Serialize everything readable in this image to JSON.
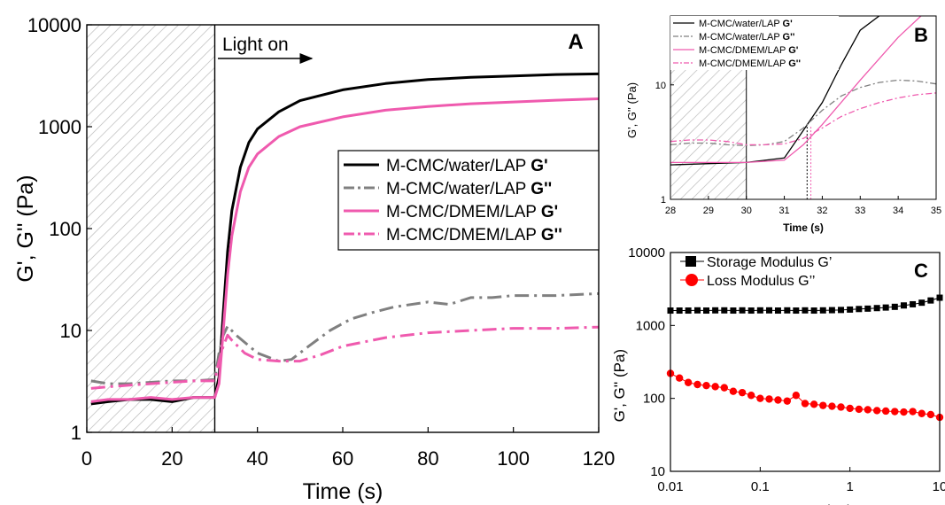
{
  "colors": {
    "black": "#000000",
    "gray": "#808080",
    "pink": "#ef5aae",
    "red": "#ff0000",
    "hatch": "#b5b5b5"
  },
  "chart_data": [
    {
      "panel": "A",
      "type": "line",
      "xlabel": "Time (s)",
      "ylabel": "G', G'' (Pa)",
      "xlim": [
        0,
        120
      ],
      "ylim": [
        1,
        10000
      ],
      "yscale": "log",
      "xticks": [
        "0",
        "20",
        "40",
        "60",
        "80",
        "100",
        "120"
      ],
      "yticks": [
        "1",
        "10",
        "100",
        "1000",
        "10000"
      ],
      "annotation": "Light on",
      "hatched_region": [
        0,
        30
      ],
      "legend_position": "center-right",
      "series": [
        {
          "name": "M-CMC/water/LAP",
          "modulus": "G'",
          "color": "#000000",
          "style": "solid",
          "x": [
            1,
            5,
            10,
            15,
            20,
            25,
            30,
            31,
            32,
            33,
            34,
            36,
            38,
            40,
            45,
            50,
            60,
            70,
            80,
            90,
            100,
            110,
            120
          ],
          "y": [
            1.9,
            2.0,
            2.1,
            2.1,
            2.0,
            2.2,
            2.2,
            3.5,
            15,
            60,
            150,
            400,
            700,
            950,
            1400,
            1800,
            2300,
            2650,
            2900,
            3050,
            3150,
            3250,
            3300
          ]
        },
        {
          "name": "M-CMC/water/LAP",
          "modulus": "G''",
          "color": "#808080",
          "style": "dashdot",
          "x": [
            1,
            5,
            10,
            15,
            20,
            25,
            30,
            31,
            32,
            33,
            35,
            40,
            45,
            48,
            52,
            57,
            62,
            67,
            72,
            80,
            85,
            90,
            95,
            100,
            110,
            120
          ],
          "y": [
            3.2,
            3.0,
            3.0,
            3.1,
            3.2,
            3.2,
            3.3,
            6,
            9,
            11,
            9,
            6,
            5,
            5.2,
            7,
            10,
            13,
            15,
            17,
            19,
            18,
            21,
            21,
            22,
            22,
            23
          ]
        },
        {
          "name": "M-CMC/DMEM/LAP",
          "modulus": "G'",
          "color": "#ef5aae",
          "style": "solid",
          "x": [
            1,
            5,
            10,
            15,
            20,
            25,
            30,
            31,
            32,
            33,
            34,
            36,
            38,
            40,
            45,
            50,
            60,
            70,
            80,
            90,
            100,
            110,
            120
          ],
          "y": [
            2.0,
            2.1,
            2.1,
            2.2,
            2.1,
            2.2,
            2.2,
            3,
            10,
            35,
            85,
            230,
            400,
            540,
            800,
            1000,
            1250,
            1450,
            1580,
            1680,
            1750,
            1820,
            1880
          ]
        },
        {
          "name": "M-CMC/DMEM/LAP",
          "modulus": "G''",
          "color": "#ef5aae",
          "style": "dashdot",
          "x": [
            1,
            5,
            10,
            15,
            20,
            25,
            30,
            31,
            32,
            33,
            34,
            37,
            40,
            45,
            50,
            55,
            60,
            70,
            80,
            90,
            100,
            110,
            120
          ],
          "y": [
            2.7,
            2.8,
            2.9,
            3.0,
            3.1,
            3.2,
            3.2,
            5,
            7,
            9,
            8,
            6,
            5.2,
            5,
            5,
            5.8,
            7,
            8.5,
            9.5,
            10,
            10.5,
            10.5,
            10.8
          ]
        }
      ]
    },
    {
      "panel": "B",
      "type": "line",
      "xlabel": "Time (s)",
      "ylabel": "G', G'' (Pa)",
      "xlim": [
        28,
        35
      ],
      "ylim": [
        1,
        40
      ],
      "yscale": "log",
      "xticks": [
        "28",
        "29",
        "30",
        "31",
        "32",
        "33",
        "34",
        "35"
      ],
      "yticks": [
        "1",
        "10"
      ],
      "hatched_region": [
        28,
        30
      ],
      "legend_position": "top-left",
      "series": [
        {
          "name": "M-CMC/water/LAP",
          "modulus": "G'",
          "color": "#000000",
          "style": "solid",
          "x": [
            28,
            29,
            30,
            31,
            31.5,
            32,
            32.5,
            33,
            33.5
          ],
          "y": [
            2.0,
            2.05,
            2.1,
            2.3,
            4,
            7,
            15,
            30,
            40
          ]
        },
        {
          "name": "M-CMC/water/LAP",
          "modulus": "G''",
          "color": "#808080",
          "style": "dashdot",
          "x": [
            28,
            28.5,
            29,
            29.5,
            30,
            30.5,
            31,
            31.5,
            32,
            32.5,
            33,
            33.5,
            34,
            34.5,
            35
          ],
          "y": [
            3.0,
            3.1,
            3.1,
            3.0,
            2.95,
            3.0,
            3.2,
            4.2,
            6,
            8,
            9.5,
            10.5,
            11,
            10.8,
            10.2
          ]
        },
        {
          "name": "M-CMC/DMEM/LAP",
          "modulus": "G'",
          "color": "#ef5aae",
          "style": "solid",
          "x": [
            28,
            29,
            30,
            31,
            31.5,
            32,
            33,
            34,
            34.6
          ],
          "y": [
            2.1,
            2.1,
            2.1,
            2.2,
            3.0,
            4.5,
            11,
            26,
            40
          ]
        },
        {
          "name": "M-CMC/DMEM/LAP",
          "modulus": "G''",
          "color": "#ef5aae",
          "style": "dashdot",
          "x": [
            28,
            28.5,
            29,
            29.5,
            30,
            30.5,
            31,
            31.5,
            32,
            32.5,
            33,
            33.5,
            34,
            34.5,
            35
          ],
          "y": [
            3.2,
            3.3,
            3.3,
            3.2,
            3.0,
            3.0,
            3.05,
            3.4,
            4.2,
            5.3,
            6.2,
            7.0,
            7.7,
            8.2,
            8.5
          ]
        }
      ],
      "markers": [
        31.6,
        31.7
      ]
    },
    {
      "panel": "C",
      "type": "scatter",
      "xlabel": "Frequency (Hz)",
      "ylabel": "G', G'' (Pa)",
      "xlim": [
        0.01,
        10
      ],
      "ylim": [
        10,
        10000
      ],
      "xscale": "log",
      "yscale": "log",
      "xticks": [
        "0.01",
        "0.1",
        "1",
        "10"
      ],
      "yticks": [
        "10",
        "100",
        "1000",
        "10000"
      ],
      "legend_position": "top-left",
      "series": [
        {
          "name": "Storage Modulus G’",
          "color": "#000000",
          "marker": "square",
          "x": [
            0.01,
            0.0126,
            0.0158,
            0.02,
            0.0251,
            0.0316,
            0.0398,
            0.0501,
            0.0631,
            0.0794,
            0.1,
            0.126,
            0.158,
            0.2,
            0.251,
            0.316,
            0.398,
            0.501,
            0.631,
            0.794,
            1,
            1.26,
            1.58,
            2,
            2.51,
            3.16,
            3.98,
            5.01,
            6.31,
            7.94,
            10
          ],
          "y": [
            1600,
            1600,
            1600,
            1610,
            1600,
            1610,
            1610,
            1600,
            1610,
            1600,
            1610,
            1610,
            1600,
            1610,
            1600,
            1610,
            1600,
            1610,
            1620,
            1630,
            1650,
            1680,
            1700,
            1730,
            1760,
            1800,
            1880,
            1950,
            2050,
            2200,
            2400
          ]
        },
        {
          "name": "Loss Modulus G’’",
          "color": "#ff0000",
          "marker": "circle",
          "x": [
            0.01,
            0.0126,
            0.0158,
            0.02,
            0.0251,
            0.0316,
            0.0398,
            0.0501,
            0.0631,
            0.0794,
            0.1,
            0.126,
            0.158,
            0.2,
            0.251,
            0.316,
            0.398,
            0.501,
            0.631,
            0.794,
            1,
            1.26,
            1.58,
            2,
            2.51,
            3.16,
            3.98,
            5.01,
            6.31,
            7.94,
            10
          ],
          "y": [
            220,
            190,
            165,
            155,
            150,
            145,
            140,
            125,
            120,
            110,
            100,
            98,
            95,
            92,
            110,
            85,
            83,
            80,
            78,
            76,
            73,
            71,
            70,
            68,
            67,
            66,
            65,
            66,
            62,
            60,
            55
          ]
        }
      ]
    }
  ]
}
